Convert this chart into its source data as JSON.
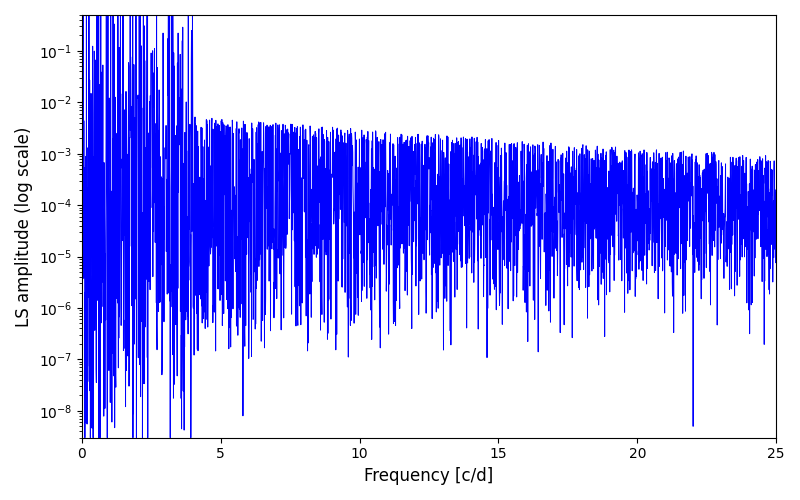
{
  "title": "",
  "xlabel": "Frequency [c/d]",
  "ylabel": "LS amplitude (log scale)",
  "xlim": [
    0,
    25
  ],
  "ylim": [
    3e-09,
    0.5
  ],
  "line_color": "#0000FF",
  "line_width": 0.7,
  "yscale": "log",
  "figsize": [
    8.0,
    5.0
  ],
  "dpi": 100,
  "seed": 42,
  "n_points": 3000,
  "freq_max": 25.0,
  "background_color": "#ffffff",
  "yticks": [
    1e-08,
    1e-07,
    1e-06,
    1e-05,
    0.0001,
    0.001,
    0.01,
    0.1
  ],
  "xticks": [
    0,
    5,
    10,
    15,
    20,
    25
  ]
}
